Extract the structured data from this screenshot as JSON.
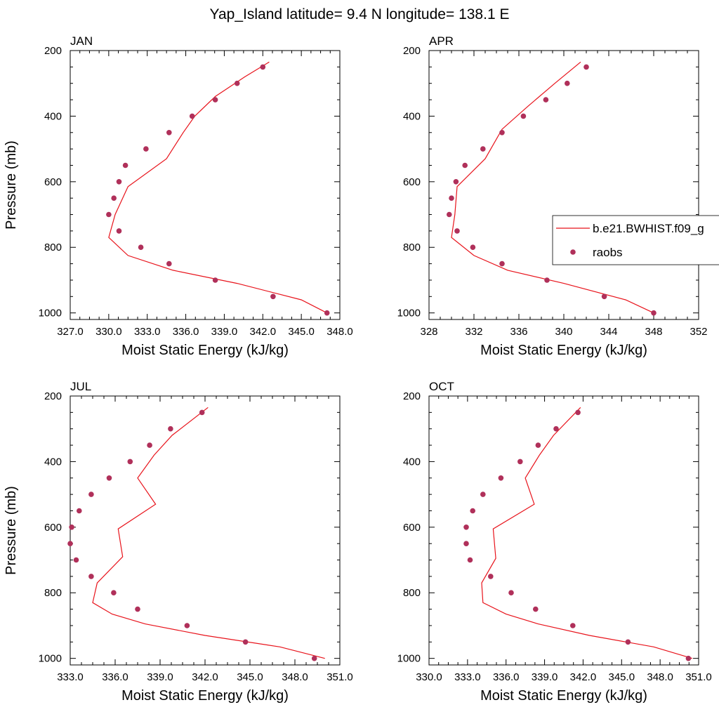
{
  "title": "Yap_Island  latitude= 9.4 N longitude= 138.1 E",
  "legend": {
    "model_label": "b.e21.BWHIST.f09_g",
    "obs_label": "raobs"
  },
  "colors": {
    "model_line": "#e8131b",
    "obs_marker": "#b0305a",
    "axis": "#000000"
  },
  "chart_data": [
    {
      "type": "line",
      "panel_label": "JAN",
      "xlabel": "Moist Static Energy (kJ/kg)",
      "ylabel": "Pressure (mb)",
      "xlim": [
        327,
        348
      ],
      "ylim": [
        1020,
        200
      ],
      "x_ticks": [
        "327.0",
        "330.0",
        "333.0",
        "336.0",
        "339.0",
        "342.0",
        "345.0",
        "348.0"
      ],
      "x_tick_values": [
        327,
        330,
        333,
        336,
        339,
        342,
        345,
        348
      ],
      "y_ticks": [
        "200",
        "400",
        "600",
        "800",
        "1000"
      ],
      "y_tick_values": [
        200,
        400,
        600,
        800,
        1000
      ],
      "series": [
        {
          "kind": "line",
          "pressure": [
            235,
            280,
            340,
            400,
            450,
            530,
            615,
            700,
            770,
            825,
            870,
            910,
            960,
            1000
          ],
          "values": [
            342.5,
            340.6,
            338.3,
            336.7,
            335.8,
            334.5,
            331.5,
            330.5,
            330.0,
            331.5,
            335.0,
            340.0,
            345.0,
            347.0
          ]
        },
        {
          "kind": "scatter",
          "pressure": [
            250,
            300,
            350,
            400,
            450,
            500,
            550,
            600,
            650,
            700,
            750,
            800,
            850,
            900,
            950,
            1000
          ],
          "values": [
            342.0,
            340.0,
            338.3,
            336.5,
            334.7,
            332.9,
            331.3,
            330.8,
            330.4,
            330.0,
            330.8,
            332.5,
            334.7,
            338.3,
            342.8,
            347.0
          ]
        }
      ]
    },
    {
      "type": "line",
      "panel_label": "APR",
      "xlabel": "Moist Static Energy (kJ/kg)",
      "ylabel": "",
      "xlim": [
        328,
        352
      ],
      "ylim": [
        1020,
        200
      ],
      "x_ticks": [
        "328",
        "332",
        "336",
        "340",
        "344",
        "348",
        "352"
      ],
      "x_tick_values": [
        328,
        332,
        336,
        340,
        344,
        348,
        352
      ],
      "y_ticks": [
        "200",
        "400",
        "600",
        "800",
        "1000"
      ],
      "y_tick_values": [
        200,
        400,
        600,
        800,
        1000
      ],
      "series": [
        {
          "kind": "line",
          "pressure": [
            235,
            300,
            370,
            440,
            530,
            615,
            700,
            770,
            825,
            870,
            910,
            960,
            1000
          ],
          "values": [
            341.5,
            339.2,
            336.8,
            334.5,
            333.0,
            330.5,
            330.3,
            330.0,
            332.0,
            335.0,
            340.0,
            345.5,
            348.0
          ]
        },
        {
          "kind": "scatter",
          "pressure": [
            250,
            300,
            350,
            400,
            450,
            500,
            550,
            600,
            650,
            700,
            750,
            800,
            850,
            900,
            950,
            1000
          ],
          "values": [
            342.0,
            340.3,
            338.4,
            336.4,
            334.5,
            332.8,
            331.2,
            330.4,
            330.0,
            329.8,
            330.5,
            331.9,
            334.5,
            338.5,
            343.6,
            348.0
          ]
        }
      ]
    },
    {
      "type": "line",
      "panel_label": "JUL",
      "xlabel": "Moist Static Energy (kJ/kg)",
      "ylabel": "Pressure (mb)",
      "xlim": [
        333,
        351
      ],
      "ylim": [
        1020,
        200
      ],
      "x_ticks": [
        "333.0",
        "336.0",
        "339.0",
        "342.0",
        "345.0",
        "348.0",
        "351.0"
      ],
      "x_tick_values": [
        333,
        336,
        339,
        342,
        345,
        348,
        351
      ],
      "y_ticks": [
        "200",
        "400",
        "600",
        "800",
        "1000"
      ],
      "y_tick_values": [
        200,
        400,
        600,
        800,
        1000
      ],
      "series": [
        {
          "kind": "line",
          "pressure": [
            235,
            320,
            380,
            450,
            530,
            605,
            690,
            770,
            830,
            865,
            895,
            930,
            965,
            1000
          ],
          "values": [
            342.2,
            339.8,
            338.6,
            337.5,
            338.7,
            336.2,
            336.5,
            334.8,
            334.5,
            335.8,
            338.0,
            342.0,
            347.0,
            350.0
          ]
        },
        {
          "kind": "scatter",
          "pressure": [
            250,
            300,
            350,
            400,
            450,
            500,
            550,
            600,
            650,
            700,
            750,
            800,
            850,
            900,
            950,
            1000
          ],
          "values": [
            341.8,
            339.7,
            338.3,
            337.0,
            335.6,
            334.4,
            333.6,
            333.1,
            333.0,
            333.4,
            334.4,
            335.9,
            337.5,
            340.8,
            344.7,
            349.3
          ]
        }
      ]
    },
    {
      "type": "line",
      "panel_label": "OCT",
      "xlabel": "Moist Static Energy (kJ/kg)",
      "ylabel": "",
      "xlim": [
        330,
        351
      ],
      "ylim": [
        1020,
        200
      ],
      "x_ticks": [
        "330.0",
        "333.0",
        "336.0",
        "339.0",
        "342.0",
        "345.0",
        "348.0",
        "351.0"
      ],
      "x_tick_values": [
        330,
        333,
        336,
        339,
        342,
        345,
        348,
        351
      ],
      "y_ticks": [
        "200",
        "400",
        "600",
        "800",
        "1000"
      ],
      "y_tick_values": [
        200,
        400,
        600,
        800,
        1000
      ],
      "series": [
        {
          "kind": "line",
          "pressure": [
            235,
            320,
            380,
            450,
            530,
            605,
            695,
            770,
            830,
            865,
            895,
            930,
            965,
            1000
          ],
          "values": [
            341.8,
            339.7,
            338.6,
            337.5,
            338.2,
            335.0,
            335.2,
            334.1,
            334.2,
            336.0,
            338.5,
            342.5,
            347.5,
            350.5
          ]
        },
        {
          "kind": "scatter",
          "pressure": [
            250,
            300,
            350,
            400,
            450,
            500,
            550,
            600,
            650,
            700,
            750,
            800,
            850,
            900,
            950,
            1000
          ],
          "values": [
            341.6,
            339.9,
            338.5,
            337.1,
            335.6,
            334.2,
            333.4,
            332.9,
            332.9,
            333.2,
            334.8,
            336.4,
            338.3,
            341.2,
            345.5,
            350.2
          ]
        }
      ]
    }
  ]
}
